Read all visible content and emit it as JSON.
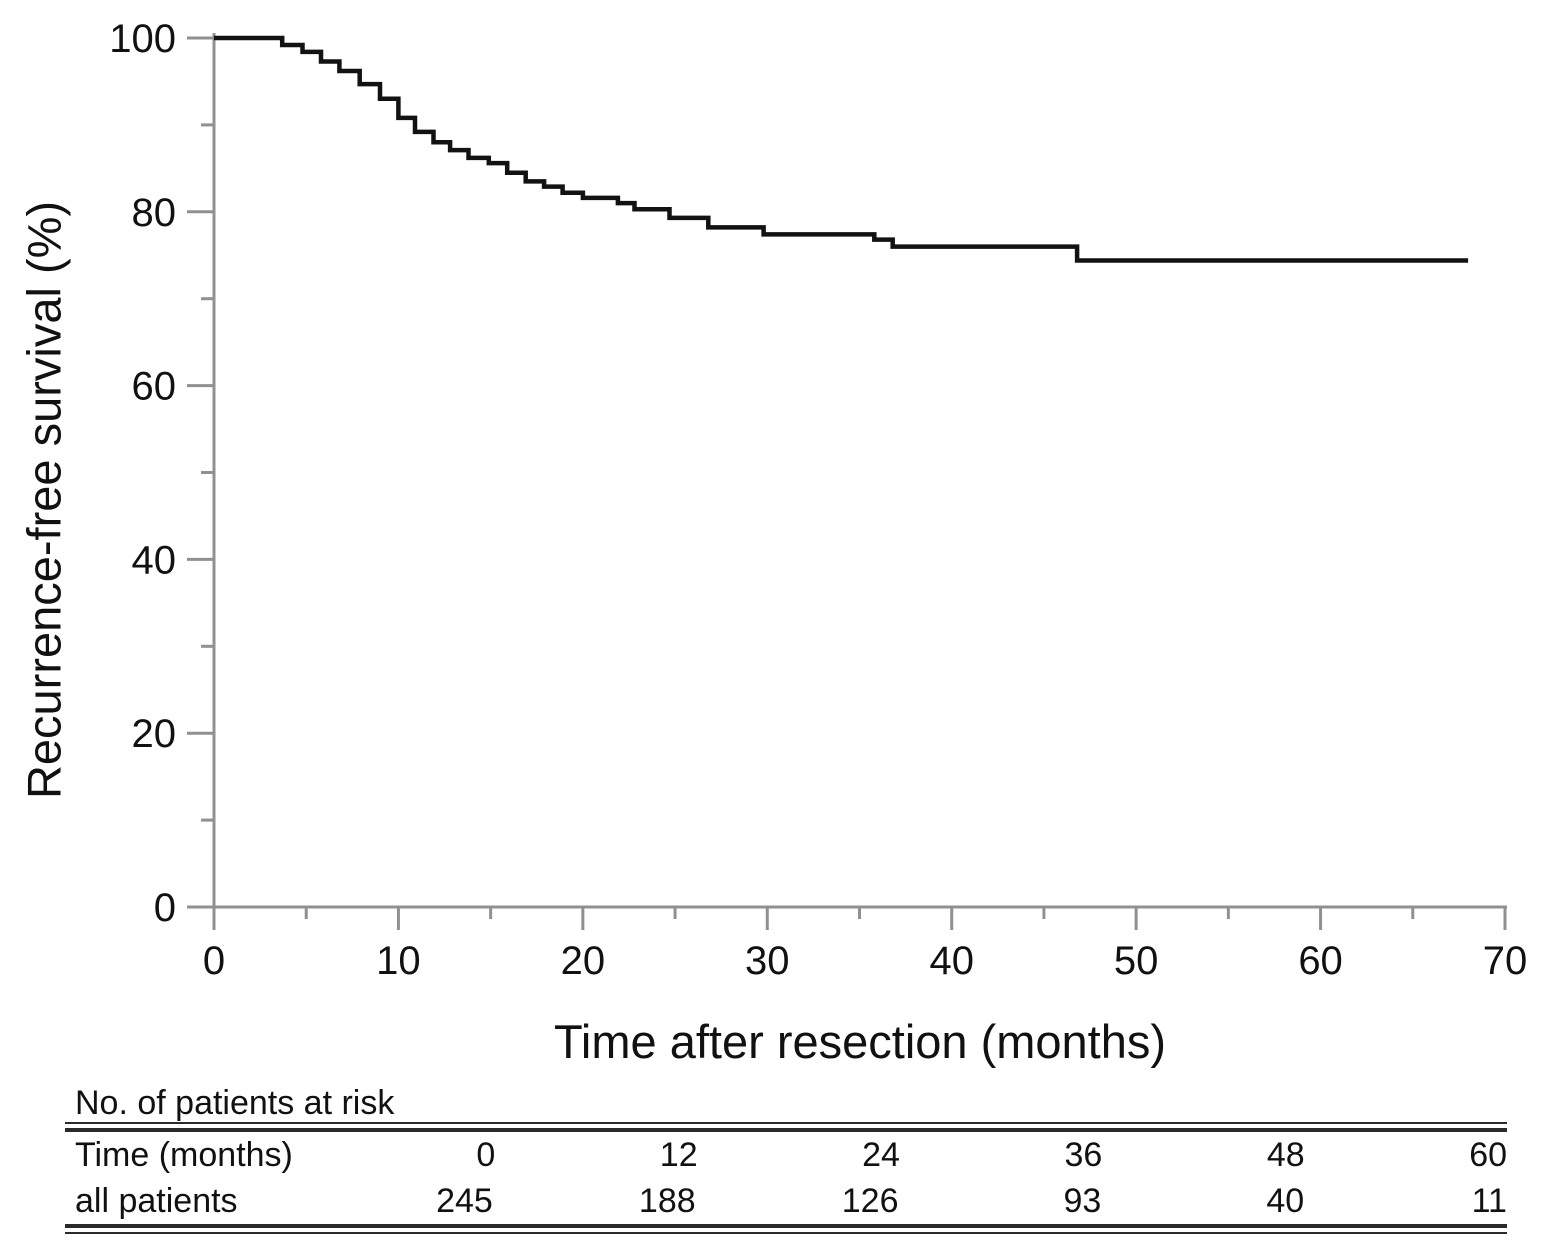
{
  "figure": {
    "background": "#ffffff",
    "axis_color": "#909090",
    "text_color": "#111111"
  },
  "chart_data": {
    "type": "line",
    "subtype": "kaplan_meier_step",
    "title": "",
    "xlabel": "Time after resection (months)",
    "ylabel": "Recurrence-free survival (%)",
    "xlim": [
      0,
      70
    ],
    "ylim": [
      0,
      100
    ],
    "x_ticks": [
      0,
      10,
      20,
      30,
      40,
      50,
      60,
      70
    ],
    "y_ticks": [
      0,
      20,
      40,
      60,
      80,
      100
    ],
    "x_minor_tick_step": 5,
    "y_minor_tick_step": 10,
    "grid": false,
    "legend_position": "none",
    "series": [
      {
        "name": "all patients",
        "color": "#121212",
        "line_width": 4.5,
        "steps": [
          [
            0,
            100
          ],
          [
            3.7,
            99.2
          ],
          [
            4.8,
            98.4
          ],
          [
            5.8,
            97.3
          ],
          [
            6.8,
            96.2
          ],
          [
            7.9,
            94.7
          ],
          [
            9.0,
            93.0
          ],
          [
            10.0,
            90.8
          ],
          [
            10.9,
            89.2
          ],
          [
            11.9,
            88.0
          ],
          [
            12.8,
            87.1
          ],
          [
            13.8,
            86.2
          ],
          [
            14.9,
            85.6
          ],
          [
            15.9,
            84.5
          ],
          [
            16.9,
            83.5
          ],
          [
            17.9,
            82.9
          ],
          [
            18.9,
            82.2
          ],
          [
            20.0,
            81.6
          ],
          [
            21.9,
            81.0
          ],
          [
            22.8,
            80.3
          ],
          [
            24.7,
            79.3
          ],
          [
            26.8,
            78.2
          ],
          [
            29.8,
            77.4
          ],
          [
            35.8,
            76.8
          ],
          [
            36.8,
            76.0
          ],
          [
            46.8,
            74.4
          ]
        ],
        "end_time": 68
      }
    ]
  },
  "risk_table": {
    "title": "No. of patients at risk",
    "time_row_label": "Time (months)",
    "patients_row_label": "all patients",
    "columns": [
      {
        "time": "0",
        "count": "245"
      },
      {
        "time": "12",
        "count": "188"
      },
      {
        "time": "24",
        "count": "126"
      },
      {
        "time": "36",
        "count": "93"
      },
      {
        "time": "48",
        "count": "40"
      },
      {
        "time": "60",
        "count": "11"
      }
    ]
  }
}
